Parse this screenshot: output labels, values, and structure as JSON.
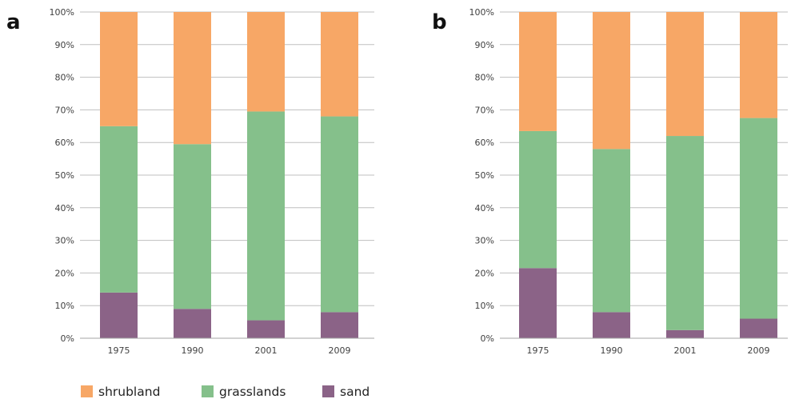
{
  "colors": {
    "sand": "#8b6387",
    "grasslands": "#85c08b",
    "shrubland": "#f7a766",
    "grid": "#bfbfbf",
    "axis": "#a6a6a6"
  },
  "legend": {
    "items": [
      {
        "key": "shrubland",
        "label": "shrubland"
      },
      {
        "key": "grasslands",
        "label": "grasslands"
      },
      {
        "key": "sand",
        "label": "sand"
      }
    ]
  },
  "chart_data": [
    {
      "type": "bar",
      "stacked": true,
      "panel": "a",
      "categories": [
        "1975",
        "1990",
        "2001",
        "2009"
      ],
      "series": [
        {
          "name": "sand",
          "values": [
            14,
            9,
            5.5,
            8
          ]
        },
        {
          "name": "grasslands",
          "values": [
            51,
            50.5,
            64,
            60
          ]
        },
        {
          "name": "shrubland",
          "values": [
            35,
            40.5,
            30.5,
            32
          ]
        }
      ],
      "ylim": [
        0,
        100
      ],
      "yticks": [
        "0%",
        "10%",
        "20%",
        "30%",
        "40%",
        "50%",
        "60%",
        "70%",
        "80%",
        "90%",
        "100%"
      ],
      "grid": true
    },
    {
      "type": "bar",
      "stacked": true,
      "panel": "b",
      "categories": [
        "1975",
        "1990",
        "2001",
        "2009"
      ],
      "series": [
        {
          "name": "sand",
          "values": [
            21.5,
            8,
            2.5,
            6
          ]
        },
        {
          "name": "grasslands",
          "values": [
            42,
            50,
            59.5,
            61.5
          ]
        },
        {
          "name": "shrubland",
          "values": [
            36.5,
            42,
            38,
            32.5
          ]
        }
      ],
      "ylim": [
        0,
        100
      ],
      "yticks": [
        "0%",
        "10%",
        "20%",
        "30%",
        "40%",
        "50%",
        "60%",
        "70%",
        "80%",
        "90%",
        "100%"
      ],
      "grid": true
    }
  ]
}
